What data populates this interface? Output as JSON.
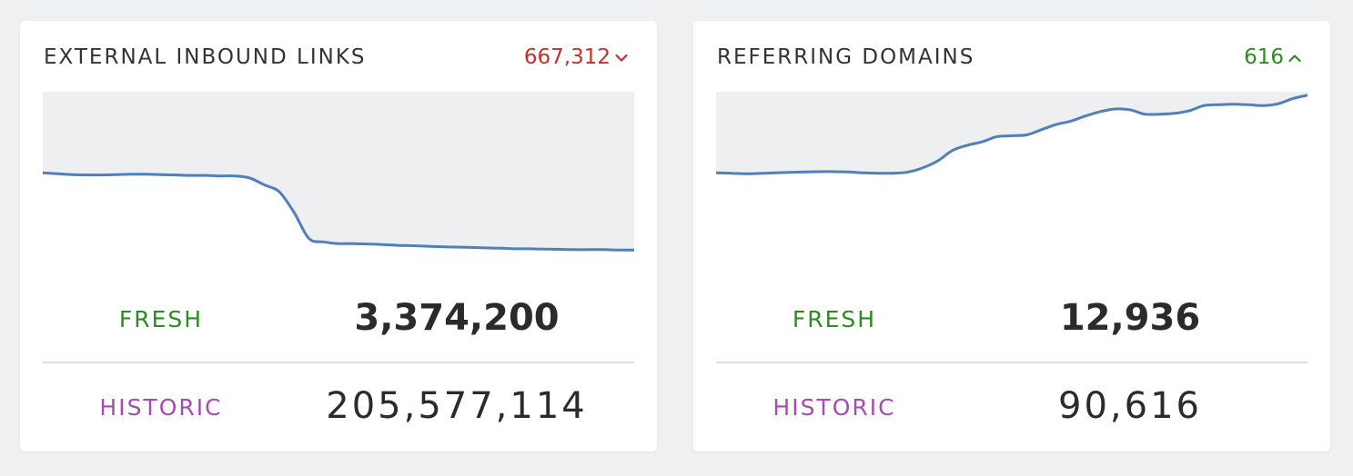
{
  "colors": {
    "line": "#4f7fbd",
    "fill": "#eeeff1",
    "fresh": "#2e8b22",
    "historic": "#a44cb4",
    "delta_down": "#c0302c",
    "delta_up": "#2e8b22"
  },
  "cards": [
    {
      "title": "EXTERNAL INBOUND LINKS",
      "delta": {
        "value": "667,312",
        "direction": "down",
        "icon": "chevron-down-icon"
      },
      "fresh_label": "FRESH",
      "fresh_value": "3,374,200",
      "historic_label": "HISTORIC",
      "historic_value": "205,577,114"
    },
    {
      "title": "REFERRING DOMAINS",
      "delta": {
        "value": "616",
        "direction": "up",
        "icon": "chevron-up-icon"
      },
      "fresh_label": "FRESH",
      "fresh_value": "12,936",
      "historic_label": "HISTORIC",
      "historic_value": "90,616"
    }
  ],
  "chart_data": [
    {
      "type": "area",
      "ylim": [
        0,
        1
      ],
      "grid": false,
      "legend": "none",
      "x": [
        0,
        1,
        2,
        3,
        4,
        5,
        6,
        7,
        8,
        9,
        10,
        11,
        12,
        13,
        14,
        15,
        16,
        17,
        18,
        19,
        20,
        21,
        22,
        23,
        24,
        25,
        26,
        27,
        28,
        29,
        30,
        31,
        32,
        33,
        34,
        35,
        36,
        37,
        38,
        39,
        40
      ],
      "series": [
        {
          "values": [
            0.53,
            0.525,
            0.52,
            0.518,
            0.518,
            0.52,
            0.522,
            0.522,
            0.52,
            0.518,
            0.515,
            0.515,
            0.512,
            0.512,
            0.5,
            0.46,
            0.42,
            0.3,
            0.15,
            0.13,
            0.12,
            0.12,
            0.118,
            0.115,
            0.11,
            0.108,
            0.105,
            0.102,
            0.1,
            0.098,
            0.095,
            0.093,
            0.09,
            0.09,
            0.088,
            0.087,
            0.085,
            0.085,
            0.085,
            0.083,
            0.083
          ]
        }
      ]
    },
    {
      "type": "area",
      "ylim": [
        0,
        1
      ],
      "grid": false,
      "legend": "none",
      "x": [
        0,
        1,
        2,
        3,
        4,
        5,
        6,
        7,
        8,
        9,
        10,
        11,
        12,
        13,
        14,
        15,
        16,
        17,
        18,
        19,
        20,
        21,
        22,
        23,
        24,
        25,
        26,
        27,
        28,
        29,
        30,
        31,
        32,
        33,
        34,
        35,
        36,
        37,
        38,
        39,
        40
      ],
      "series": [
        {
          "values": [
            0.53,
            0.528,
            0.525,
            0.527,
            0.53,
            0.533,
            0.535,
            0.537,
            0.537,
            0.535,
            0.53,
            0.528,
            0.528,
            0.535,
            0.56,
            0.6,
            0.66,
            0.69,
            0.71,
            0.74,
            0.745,
            0.75,
            0.78,
            0.81,
            0.83,
            0.86,
            0.885,
            0.9,
            0.895,
            0.87,
            0.87,
            0.875,
            0.89,
            0.92,
            0.925,
            0.928,
            0.925,
            0.92,
            0.93,
            0.96,
            0.98
          ]
        }
      ]
    }
  ]
}
